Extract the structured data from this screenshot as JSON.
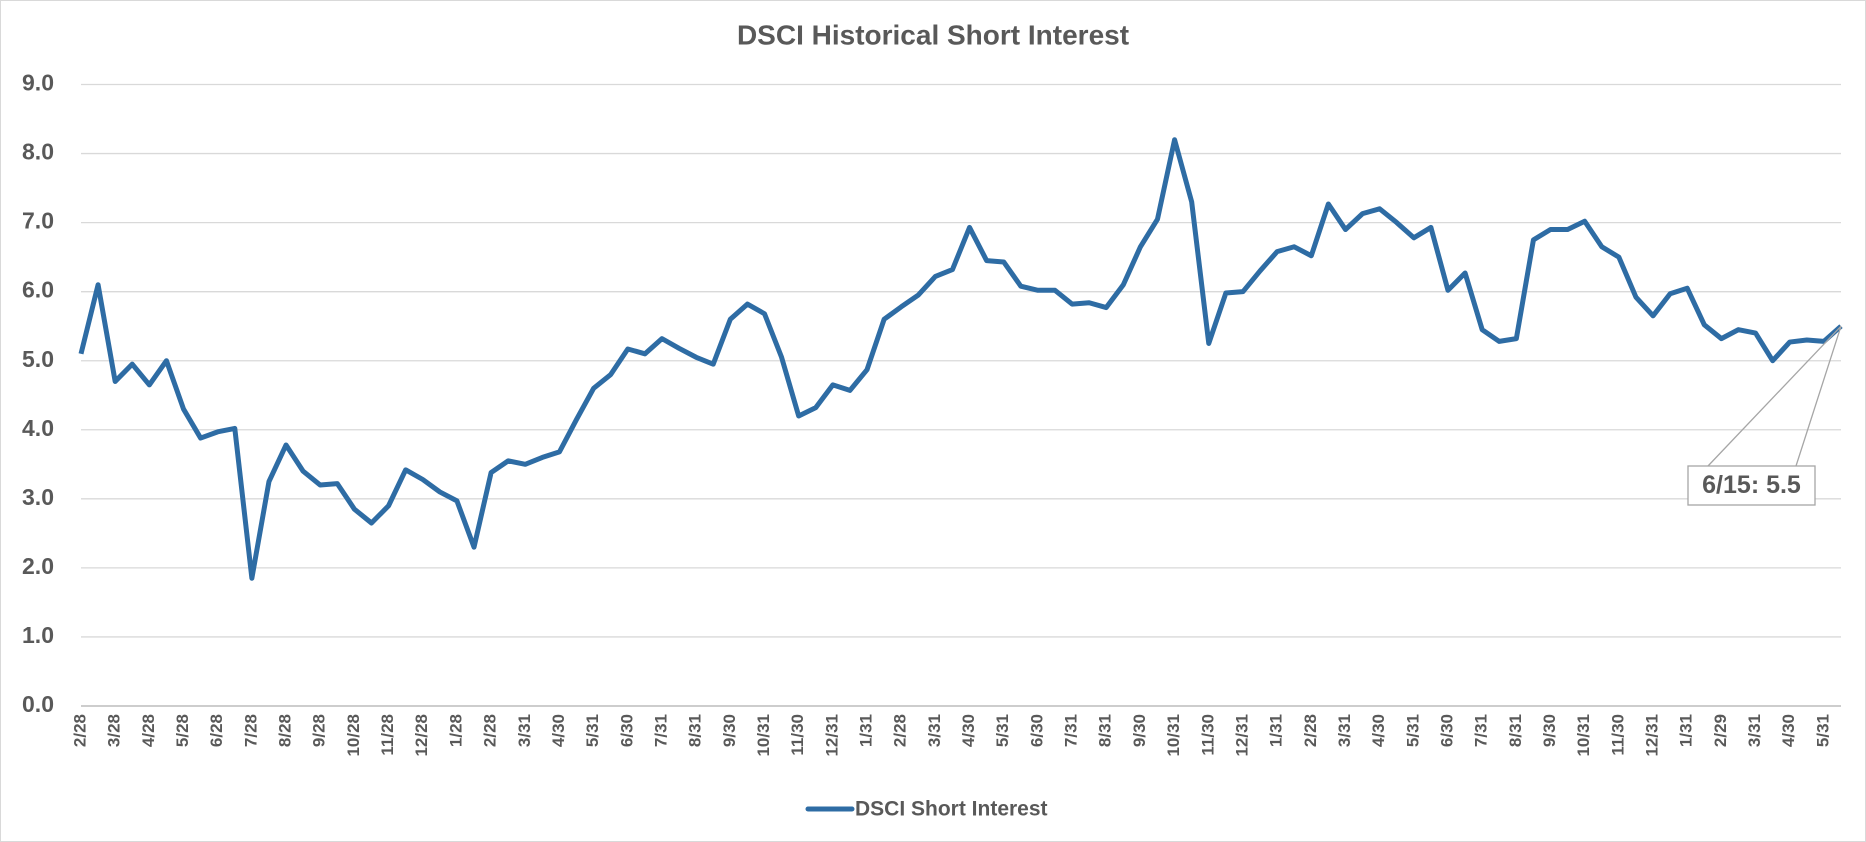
{
  "chart_data": {
    "type": "line",
    "title": "DSCI Historical Short Interest",
    "categories": [
      "2/28",
      null,
      "3/28",
      null,
      "4/28",
      null,
      "5/28",
      null,
      "6/28",
      null,
      "7/28",
      null,
      "8/28",
      null,
      "9/28",
      null,
      "10/28",
      null,
      "11/28",
      null,
      "12/28",
      null,
      "1/28",
      null,
      "2/28",
      null,
      "3/31",
      null,
      "4/30",
      null,
      "5/31",
      null,
      "6/30",
      null,
      "7/31",
      null,
      "8/31",
      null,
      "9/30",
      null,
      "10/31",
      null,
      "11/30",
      null,
      "12/31",
      null,
      "1/31",
      null,
      "2/28",
      null,
      "3/31",
      null,
      "4/30",
      null,
      "5/31",
      null,
      "6/30",
      null,
      "7/31",
      null,
      "8/31",
      null,
      "9/30",
      null,
      "10/31",
      null,
      "11/30",
      null,
      "12/31",
      null,
      "1/31",
      null,
      "2/28",
      null,
      "3/31",
      null,
      "4/30",
      null,
      "5/31",
      null,
      "6/30",
      null,
      "7/31",
      null,
      "8/31",
      null,
      "9/30",
      null,
      "10/31",
      null,
      "11/30",
      null,
      "12/31",
      null,
      "1/31",
      null,
      "2/29",
      null,
      "3/31",
      null,
      "4/30",
      null,
      "5/31",
      null
    ],
    "series": [
      {
        "name": "DSCI Short Interest",
        "color": "#2e6ca4",
        "values": [
          5.1,
          6.1,
          4.7,
          4.95,
          4.65,
          5.0,
          4.3,
          3.88,
          3.97,
          4.02,
          1.85,
          3.25,
          3.78,
          3.4,
          3.2,
          3.22,
          2.85,
          2.65,
          2.9,
          3.42,
          3.28,
          3.1,
          2.97,
          2.3,
          3.38,
          3.55,
          3.5,
          3.6,
          3.68,
          4.15,
          4.6,
          4.8,
          5.17,
          5.1,
          5.32,
          5.18,
          5.05,
          4.95,
          5.6,
          5.82,
          5.68,
          5.05,
          4.2,
          4.32,
          4.65,
          4.57,
          4.87,
          5.6,
          5.78,
          5.95,
          6.22,
          6.32,
          6.93,
          6.45,
          6.43,
          6.08,
          6.02,
          6.02,
          5.82,
          5.84,
          5.77,
          6.1,
          6.65,
          7.05,
          8.2,
          7.3,
          5.25,
          5.98,
          6.0,
          6.3,
          6.58,
          6.65,
          6.52,
          7.27,
          6.9,
          7.13,
          7.2,
          7.0,
          6.78,
          6.93,
          6.02,
          6.27,
          5.45,
          5.28,
          5.32,
          6.75,
          6.9,
          6.9,
          7.02,
          6.65,
          6.5,
          5.92,
          5.65,
          5.97,
          6.05,
          5.52,
          5.32,
          5.45,
          5.4,
          5.0,
          5.27,
          5.3,
          5.28,
          5.5
        ]
      }
    ],
    "ylim": [
      0,
      9
    ],
    "yticks": [
      {
        "value": 0,
        "label": "0.0"
      },
      {
        "value": 1,
        "label": "1.0"
      },
      {
        "value": 2,
        "label": "2.0"
      },
      {
        "value": 3,
        "label": "3.0"
      },
      {
        "value": 4,
        "label": "4.0"
      },
      {
        "value": 5,
        "label": "5.0"
      },
      {
        "value": 6,
        "label": "6.0"
      },
      {
        "value": 7,
        "label": "7.0"
      },
      {
        "value": 8,
        "label": "8.0"
      },
      {
        "value": 9,
        "label": "9.0"
      }
    ],
    "grid": true,
    "legend": "bottom",
    "annotation": "6/15: 5.5"
  }
}
